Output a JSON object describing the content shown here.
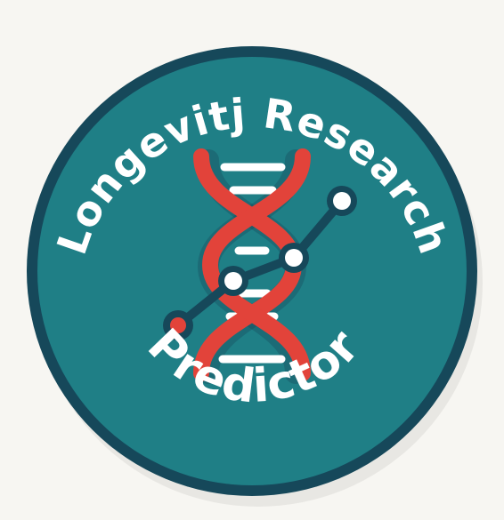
{
  "badge": {
    "top_text": "Longevitj Research",
    "bottom_text": "Predictor"
  },
  "colors": {
    "background": "#f7f6f2",
    "ring": "#16485a",
    "face": "#1f7f86",
    "helix": "#e2433a",
    "rung": "#ffffff",
    "graph_line": "#16485a",
    "graph_node_fill": "#ffffff",
    "graph_node_accent": "#e2433a"
  },
  "icons": {
    "emblem": "dna-helix-icon",
    "overlay": "trend-graph-icon"
  }
}
